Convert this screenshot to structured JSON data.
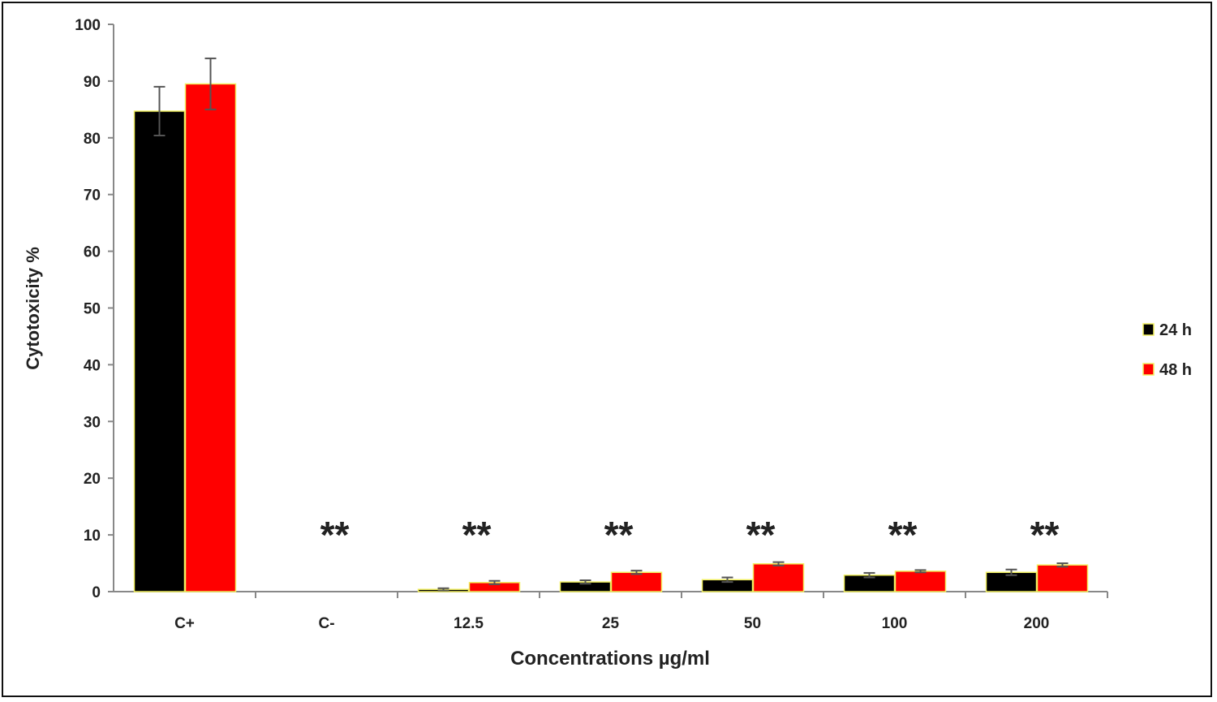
{
  "chart_data": {
    "type": "bar",
    "title": "",
    "xlabel": "Concentrations µg/ml",
    "ylabel": "Cytotoxicity %",
    "ylim": [
      0,
      100
    ],
    "yticks": [
      "0",
      "10",
      "20",
      "30",
      "40",
      "50",
      "60",
      "70",
      "80",
      "90",
      "100"
    ],
    "categories": [
      "C+",
      "C-",
      "12.5",
      "25",
      "50",
      "100",
      "200"
    ],
    "series": [
      {
        "name": "24 h",
        "color": "#000000",
        "values": [
          84.7,
          0,
          0.4,
          1.7,
          2.1,
          2.9,
          3.4
        ],
        "errors": [
          4.3,
          0,
          0.2,
          0.3,
          0.4,
          0.4,
          0.5
        ]
      },
      {
        "name": "48 h",
        "color": "#ff0000",
        "values": [
          89.5,
          0,
          1.6,
          3.4,
          4.9,
          3.6,
          4.7
        ],
        "errors": [
          4.5,
          0,
          0.3,
          0.3,
          0.3,
          0.2,
          0.3
        ]
      }
    ],
    "annotations": [
      "",
      "**",
      "**",
      "**",
      "**",
      "**",
      "**"
    ],
    "legend": "right",
    "grid": false
  }
}
